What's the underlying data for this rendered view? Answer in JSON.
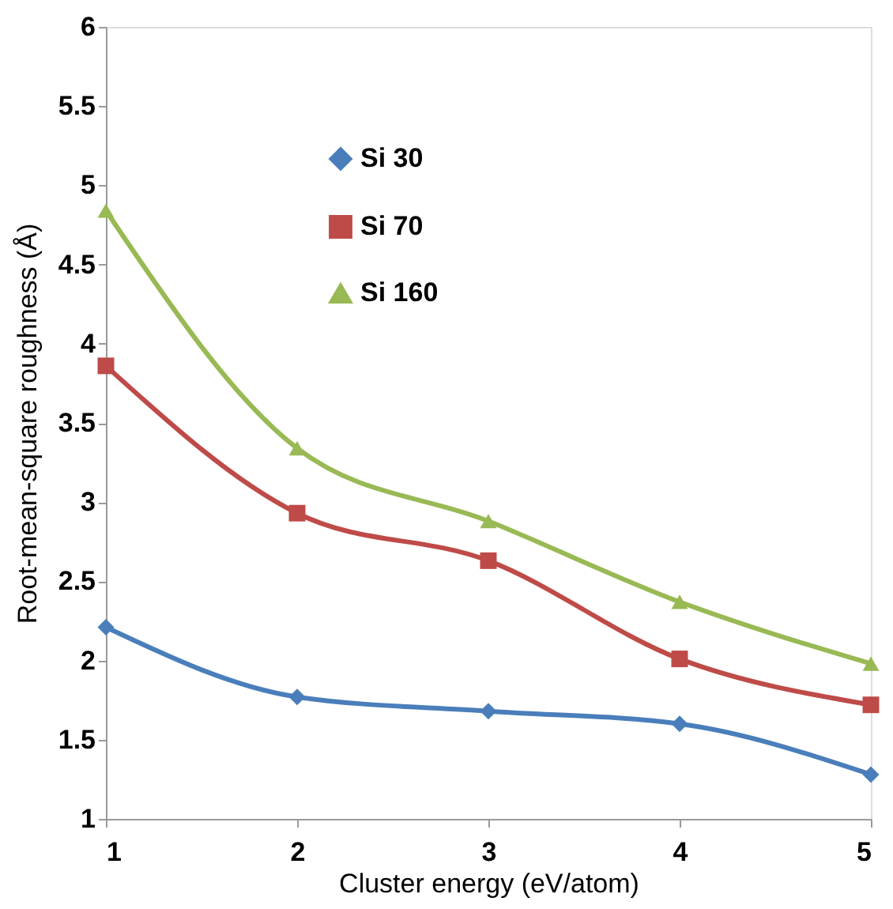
{
  "chart_data": {
    "type": "line",
    "xlabel": "Cluster energy (eV/atom)",
    "ylabel": "Root-mean-square roughness (Å)",
    "x": [
      1,
      2,
      3,
      4,
      5
    ],
    "series": [
      {
        "name": "Si 30",
        "color": "#4a7ebb",
        "marker": "diamond",
        "values": [
          2.21,
          1.77,
          1.68,
          1.6,
          1.28
        ]
      },
      {
        "name": "Si 70",
        "color": "#be4b48",
        "marker": "square",
        "values": [
          3.86,
          2.93,
          2.63,
          2.01,
          1.72
        ]
      },
      {
        "name": "Si 160",
        "color": "#98b954",
        "marker": "triangle",
        "values": [
          4.84,
          3.34,
          2.88,
          2.37,
          1.98
        ]
      }
    ],
    "xlim": [
      1,
      5
    ],
    "xticks": [
      1,
      2,
      3,
      4,
      5
    ],
    "ylim": [
      1,
      6
    ],
    "yticks": [
      1,
      1.5,
      2,
      2.5,
      3,
      3.5,
      4,
      4.5,
      5,
      5.5,
      6
    ],
    "grid": false,
    "legend": "top left",
    "line_style": "solid"
  }
}
